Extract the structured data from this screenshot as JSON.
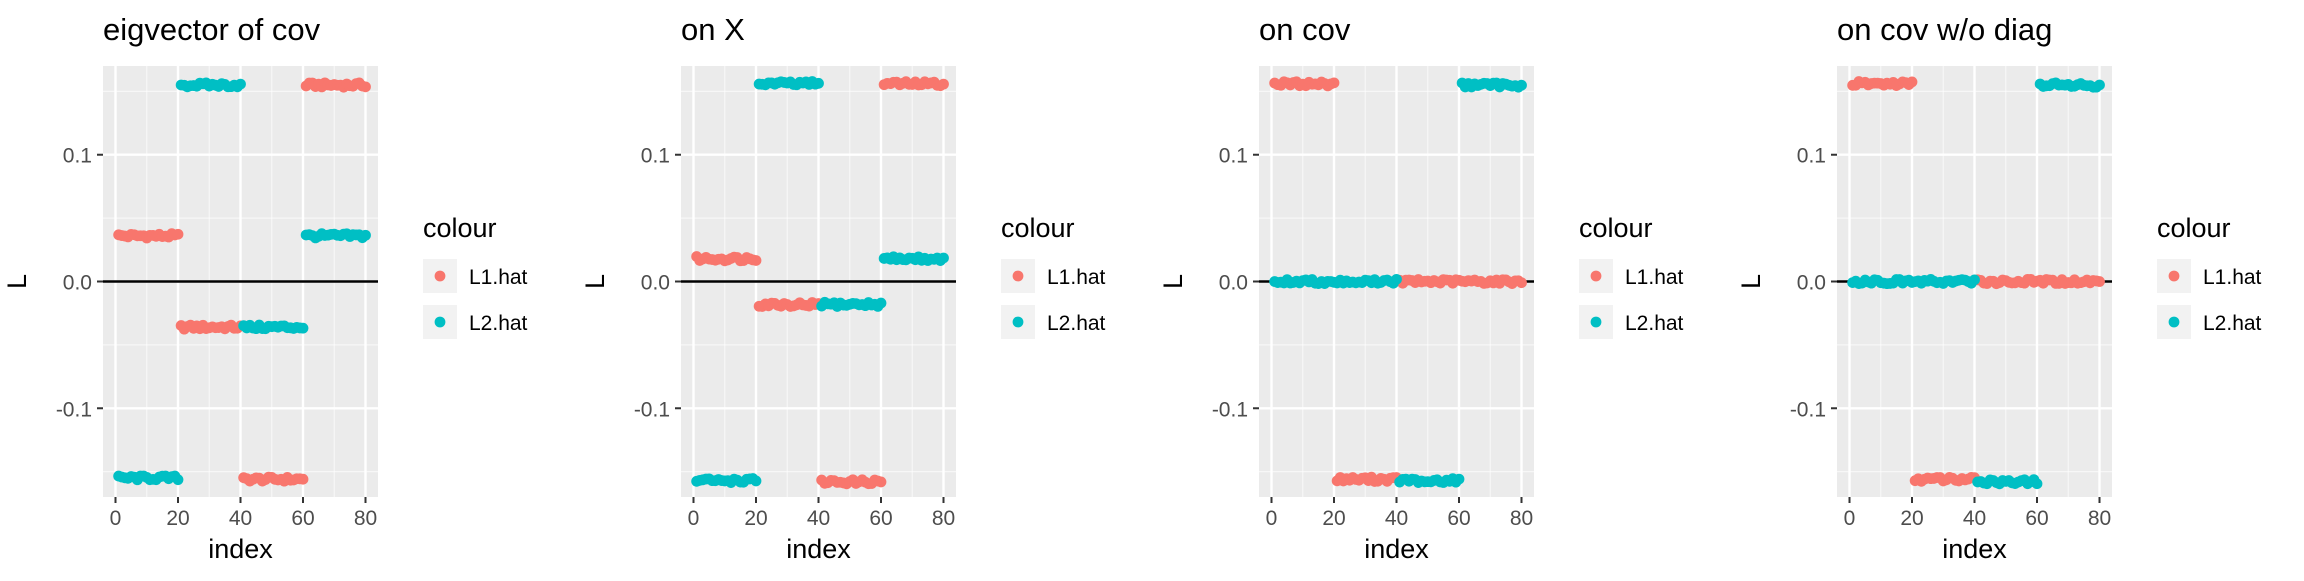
{
  "colors": {
    "panel_bg": "#EBEBEB",
    "grid_major": "#FFFFFF",
    "tick_text": "#4D4D4D",
    "zero_line": "#000000",
    "L1.hat": "#F8766D",
    "L2.hat": "#00BFC4"
  },
  "legend": {
    "title": "colour",
    "keys": [
      "L1.hat",
      "L2.hat"
    ]
  },
  "chart_data": [
    {
      "type": "scatter",
      "title": "eigvector of cov",
      "xlabel": "index",
      "ylabel": "L",
      "xlim": [
        0,
        80
      ],
      "ylim": [
        -0.17,
        0.17
      ],
      "xticks": [
        "0",
        "20",
        "40",
        "60",
        "80"
      ],
      "yticks": [
        "-0.1",
        "0.0",
        "0.1"
      ],
      "hline": 0,
      "grid": true,
      "legend_position": "right",
      "series": [
        {
          "name": "L1.hat",
          "segments": [
            {
              "x": [
                1,
                20
              ],
              "y": 0.036
            },
            {
              "x": [
                21,
                40
              ],
              "y": -0.036
            },
            {
              "x": [
                41,
                60
              ],
              "y": -0.156
            },
            {
              "x": [
                61,
                80
              ],
              "y": 0.155
            }
          ]
        },
        {
          "name": "L2.hat",
          "segments": [
            {
              "x": [
                1,
                20
              ],
              "y": -0.155
            },
            {
              "x": [
                21,
                40
              ],
              "y": 0.155
            },
            {
              "x": [
                41,
                60
              ],
              "y": -0.036
            },
            {
              "x": [
                61,
                80
              ],
              "y": 0.036
            }
          ]
        }
      ]
    },
    {
      "type": "scatter",
      "title": "on X",
      "xlabel": "index",
      "ylabel": "L",
      "xlim": [
        0,
        80
      ],
      "ylim": [
        -0.17,
        0.17
      ],
      "xticks": [
        "0",
        "20",
        "40",
        "60",
        "80"
      ],
      "yticks": [
        "-0.1",
        "0.0",
        "0.1"
      ],
      "hline": 0,
      "grid": true,
      "legend_position": "right",
      "series": [
        {
          "name": "L1.hat",
          "segments": [
            {
              "x": [
                1,
                20
              ],
              "y": 0.018
            },
            {
              "x": [
                21,
                40
              ],
              "y": -0.018
            },
            {
              "x": [
                41,
                60
              ],
              "y": -0.158
            },
            {
              "x": [
                61,
                80
              ],
              "y": 0.156
            }
          ]
        },
        {
          "name": "L2.hat",
          "segments": [
            {
              "x": [
                1,
                20
              ],
              "y": -0.157
            },
            {
              "x": [
                21,
                40
              ],
              "y": 0.156
            },
            {
              "x": [
                41,
                60
              ],
              "y": -0.018
            },
            {
              "x": [
                61,
                80
              ],
              "y": 0.018
            }
          ]
        }
      ]
    },
    {
      "type": "scatter",
      "title": "on cov",
      "xlabel": "index",
      "ylabel": "L",
      "xlim": [
        0,
        80
      ],
      "ylim": [
        -0.17,
        0.17
      ],
      "xticks": [
        "0",
        "20",
        "40",
        "60",
        "80"
      ],
      "yticks": [
        "-0.1",
        "0.0",
        "0.1"
      ],
      "hline": 0,
      "grid": true,
      "legend_position": "right",
      "series": [
        {
          "name": "L1.hat",
          "segments": [
            {
              "x": [
                1,
                20
              ],
              "y": 0.156
            },
            {
              "x": [
                21,
                40
              ],
              "y": -0.156
            },
            {
              "x": [
                41,
                80
              ],
              "y": 0.0
            }
          ]
        },
        {
          "name": "L2.hat",
          "segments": [
            {
              "x": [
                1,
                40
              ],
              "y": 0.0
            },
            {
              "x": [
                41,
                60
              ],
              "y": -0.157
            },
            {
              "x": [
                61,
                80
              ],
              "y": 0.155
            }
          ]
        }
      ]
    },
    {
      "type": "scatter",
      "title": "on cov w/o diag",
      "xlabel": "index",
      "ylabel": "L",
      "xlim": [
        0,
        80
      ],
      "ylim": [
        -0.17,
        0.17
      ],
      "xticks": [
        "0",
        "20",
        "40",
        "60",
        "80"
      ],
      "yticks": [
        "-0.1",
        "0.0",
        "0.1"
      ],
      "hline": 0,
      "grid": true,
      "legend_position": "right",
      "series": [
        {
          "name": "L1.hat",
          "segments": [
            {
              "x": [
                1,
                20
              ],
              "y": 0.156
            },
            {
              "x": [
                21,
                40
              ],
              "y": -0.156
            },
            {
              "x": [
                41,
                80
              ],
              "y": 0.0
            }
          ]
        },
        {
          "name": "L2.hat",
          "segments": [
            {
              "x": [
                1,
                40
              ],
              "y": 0.0
            },
            {
              "x": [
                41,
                60
              ],
              "y": -0.158
            },
            {
              "x": [
                61,
                80
              ],
              "y": 0.155
            }
          ]
        }
      ]
    }
  ]
}
